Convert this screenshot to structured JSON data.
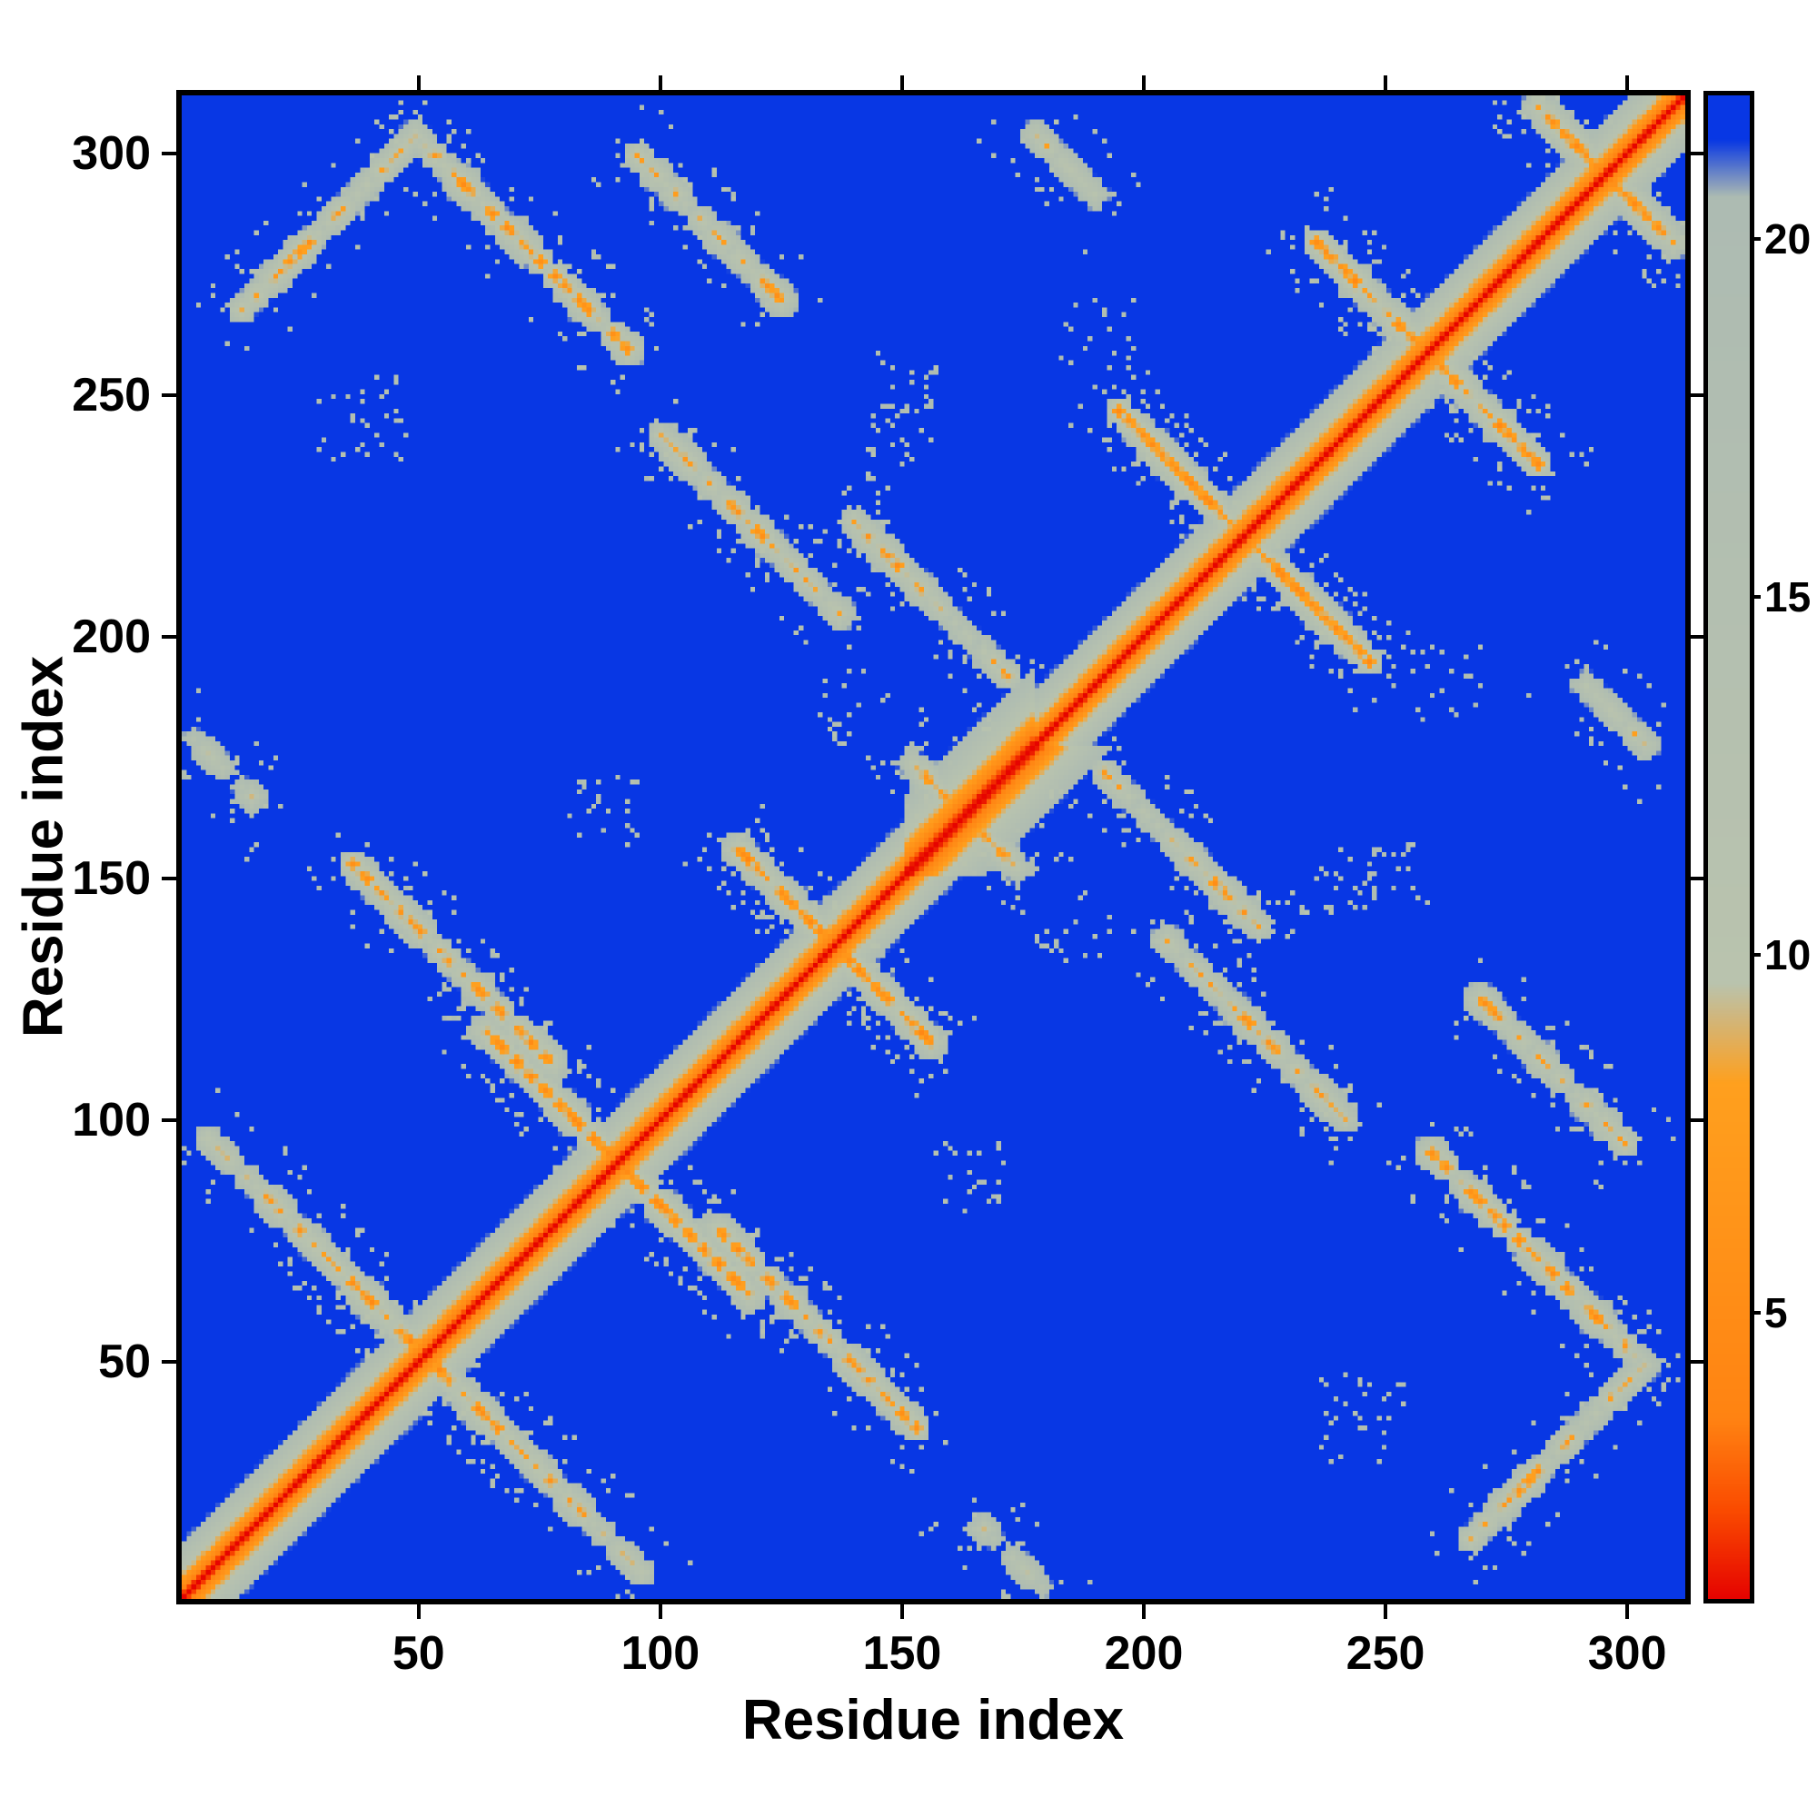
{
  "figure": {
    "xlabel": "Residue index",
    "ylabel": "Residue index"
  },
  "chart_data": {
    "type": "heatmap",
    "title": "",
    "xlabel": "Residue index",
    "ylabel": "Residue index",
    "description": "Symmetric residue-residue distance (contact) map of a ~312-residue protein. Red main diagonal with orange flanks and a sage-grey near-diagonal band on a saturated blue background (distances beyond the colour scale). Anti-diagonal grey streaks stippled with orange/red contact spots cross the main diagonal near residues 50, 90, 135, 162, 220, 258 and 295, with additional off-diagonal contact patches between chain segments.",
    "n_residues": 312,
    "axis_range": [
      1,
      312
    ],
    "x_ticks": [
      50,
      100,
      150,
      200,
      250,
      300
    ],
    "y_ticks": [
      50,
      100,
      150,
      200,
      250,
      300
    ],
    "value_range": [
      1,
      22
    ],
    "colorbar_ticks": [
      5,
      10,
      15,
      20
    ],
    "colormap_stops": [
      {
        "value": 1.0,
        "color": "#e60400"
      },
      {
        "value": 2.2,
        "color": "#fa4a00"
      },
      {
        "value": 3.5,
        "color": "#ff8312"
      },
      {
        "value": 8.2,
        "color": "#ffa01e"
      },
      {
        "value": 9.6,
        "color": "#b9c3ae"
      },
      {
        "value": 20.6,
        "color": "#adbbb2"
      },
      {
        "value": 21.4,
        "color": "#0837e4"
      },
      {
        "value": 25.0,
        "color": "#0837e4"
      }
    ],
    "seed": 42,
    "diagonal_band": {
      "halfwidth": 13,
      "slope": 1.75
    },
    "diagonal_widenings": [
      {
        "start": 150,
        "end": 176,
        "halfwidth": 17,
        "slope": 1.25
      }
    ],
    "contact_streaks": [
      {
        "orientation": "anti",
        "i": 50,
        "j": 50,
        "len": 36,
        "dmin": 4.0
      },
      {
        "orientation": "anti",
        "i": 90,
        "j": 90,
        "len": 56,
        "dmin": 3.5
      },
      {
        "orientation": "anti",
        "i": 135,
        "j": 135,
        "len": 40,
        "dmin": 4.0
      },
      {
        "orientation": "anti",
        "i": 162,
        "j": 162,
        "len": 22,
        "dmin": 5.0
      },
      {
        "orientation": "anti",
        "i": 220,
        "j": 220,
        "len": 52,
        "dmin": 3.5
      },
      {
        "orientation": "anti",
        "i": 258,
        "j": 258,
        "len": 46,
        "dmin": 4.0
      },
      {
        "orientation": "anti",
        "i": 295,
        "j": 295,
        "len": 28,
        "dmin": 4.0
      },
      {
        "orientation": "anti",
        "i": 22,
        "j": 78,
        "len": 34,
        "dmin": 4.5
      },
      {
        "orientation": "anti",
        "i": 56,
        "j": 131,
        "len": 42,
        "dmin": 4.5
      },
      {
        "orientation": "anti",
        "i": 118,
        "j": 222,
        "len": 38,
        "dmin": 4.5
      },
      {
        "orientation": "par",
        "i": 30,
        "j": 285,
        "len": 36,
        "dmin": 5.0
      },
      {
        "orientation": "anti",
        "i": 71,
        "j": 280,
        "len": 42,
        "dmin": 4.5
      },
      {
        "orientation": "anti",
        "i": 109,
        "j": 284,
        "len": 30,
        "dmin": 5.0
      },
      {
        "orientation": "anti",
        "i": 155,
        "j": 207,
        "len": 32,
        "dmin": 5.0
      },
      {
        "orientation": "anti",
        "i": 8,
        "j": 172,
        "len": 14,
        "dmin": 8.0
      },
      {
        "orientation": "anti",
        "i": 183,
        "j": 297,
        "len": 14,
        "dmin": 7.0
      }
    ],
    "speckle_clusters": [
      {
        "i": 38,
        "j": 246,
        "r": 10,
        "n": 30
      },
      {
        "i": 150,
        "j": 250,
        "r": 8,
        "n": 22
      },
      {
        "i": 190,
        "j": 262,
        "r": 8,
        "n": 20
      },
      {
        "i": 148,
        "j": 242,
        "r": 7,
        "n": 18
      },
      {
        "i": 140,
        "j": 185,
        "r": 8,
        "n": 20
      },
      {
        "i": 88,
        "j": 163,
        "r": 8,
        "n": 22
      },
      {
        "i": 172,
        "j": 176,
        "r": 6,
        "n": 15
      }
    ]
  }
}
